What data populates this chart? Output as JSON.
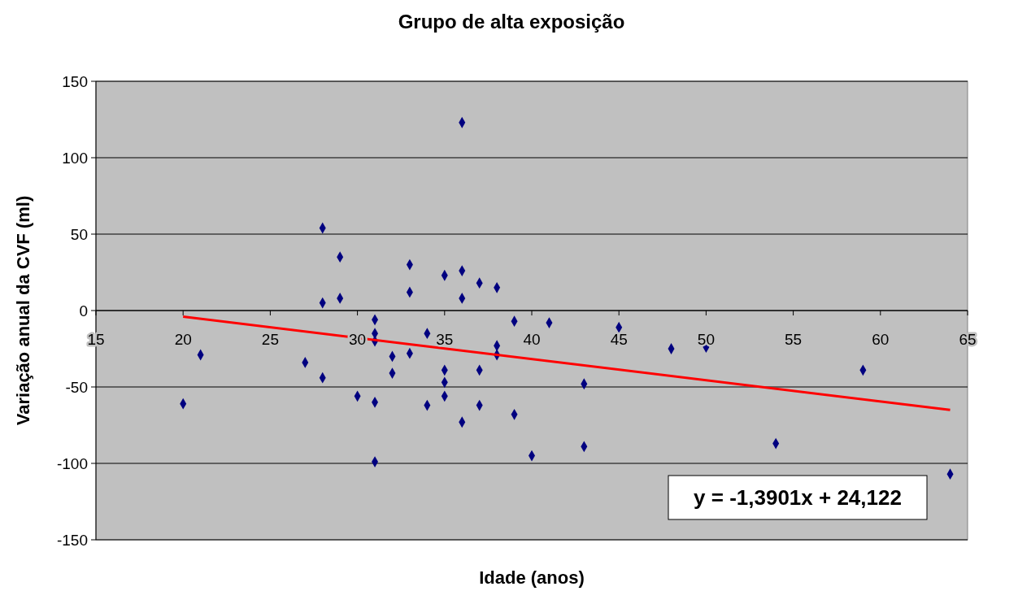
{
  "chart_data": {
    "type": "scatter",
    "title": "Grupo de alta exposição",
    "xlabel": "Idade (anos)",
    "ylabel": "Variação anual da CVF (ml)",
    "xlim": [
      15,
      65
    ],
    "xticks": [
      15,
      20,
      25,
      30,
      35,
      40,
      45,
      50,
      55,
      60,
      65
    ],
    "ylim": [
      -150,
      150
    ],
    "yticks": [
      -150,
      -100,
      -50,
      0,
      50,
      100,
      150
    ],
    "grid": "y",
    "series": [
      {
        "marker": "diamond",
        "color": "#000080",
        "x": [
          20,
          21,
          27,
          28,
          28,
          28,
          29,
          29,
          30,
          31,
          31,
          31,
          31,
          31,
          32,
          32,
          33,
          33,
          33,
          34,
          34,
          35,
          35,
          35,
          35,
          36,
          36,
          36,
          36,
          37,
          37,
          37,
          38,
          38,
          38,
          39,
          39,
          40,
          41,
          43,
          43,
          45,
          48,
          50,
          54,
          59,
          64
        ],
        "values": [
          -61,
          -29,
          -34,
          54,
          5,
          -44,
          35,
          8,
          -56,
          -6,
          -15,
          -20,
          -60,
          -99,
          -30,
          -41,
          30,
          12,
          -28,
          -15,
          -62,
          23,
          -39,
          -47,
          -56,
          123,
          26,
          8,
          -73,
          18,
          -39,
          -62,
          15,
          -23,
          -29,
          -7,
          -68,
          -95,
          -8,
          -48,
          -89,
          -11,
          -25,
          -24,
          -87,
          -39,
          -107
        ]
      },
      {
        "type": "line",
        "color": "#ff0000",
        "x": [
          20,
          64
        ],
        "values": [
          -4,
          -65
        ]
      }
    ],
    "annotations": [
      "y = -1,3901x + 24,122"
    ]
  }
}
